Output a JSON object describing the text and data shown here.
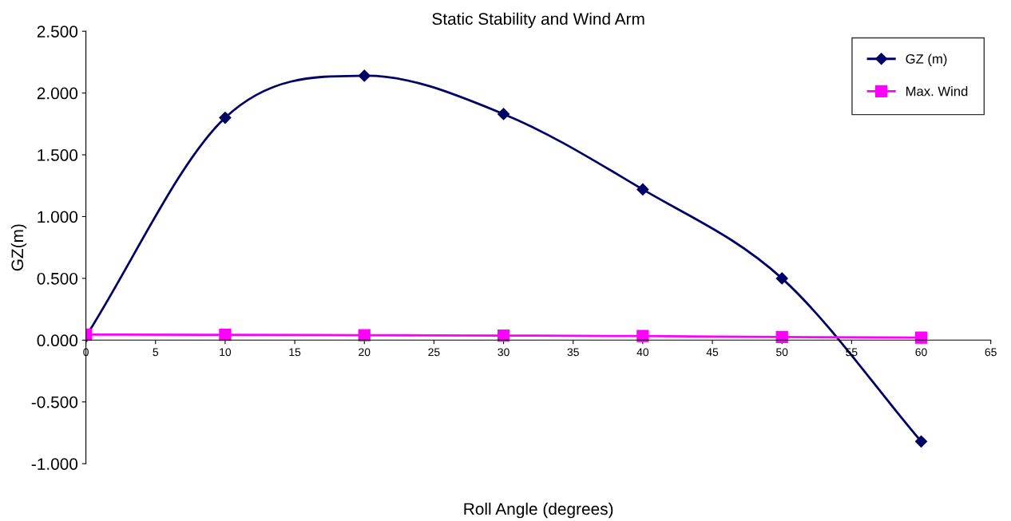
{
  "chart_data": {
    "type": "line",
    "title": "Static Stability and Wind Arm",
    "xlabel": "Roll Angle (degrees)",
    "ylabel": "GZ(m)",
    "x": [
      0,
      10,
      20,
      30,
      40,
      50,
      60
    ],
    "series": [
      {
        "name": "GZ (m)",
        "color": "#000066",
        "values": [
          0.03,
          1.8,
          2.14,
          1.83,
          1.22,
          0.5,
          -0.82
        ],
        "marker": "diamond"
      },
      {
        "name": "Max. Wind",
        "color": "#ff00ff",
        "values": [
          0.045,
          0.043,
          0.04,
          0.037,
          0.033,
          0.025,
          0.02
        ],
        "marker": "square"
      }
    ],
    "xlim": [
      0,
      65
    ],
    "xticks": [
      0,
      5,
      10,
      15,
      20,
      25,
      30,
      35,
      40,
      45,
      50,
      55,
      60,
      65
    ],
    "ylim": [
      -1.0,
      2.5
    ],
    "yticks": [
      {
        "value": -1.0,
        "label": "-1.000"
      },
      {
        "value": -0.5,
        "label": "-0.500"
      },
      {
        "value": 0,
        "label": "0.000"
      },
      {
        "value": 0.5,
        "label": "0.500"
      },
      {
        "value": 1.0,
        "label": "1.000"
      },
      {
        "value": 1.5,
        "label": "1.500"
      },
      {
        "value": 2.0,
        "label": "2.000"
      },
      {
        "value": 2.5,
        "label": "2.500"
      }
    ],
    "grid": false,
    "legend": "top right",
    "line_style": "solid"
  }
}
